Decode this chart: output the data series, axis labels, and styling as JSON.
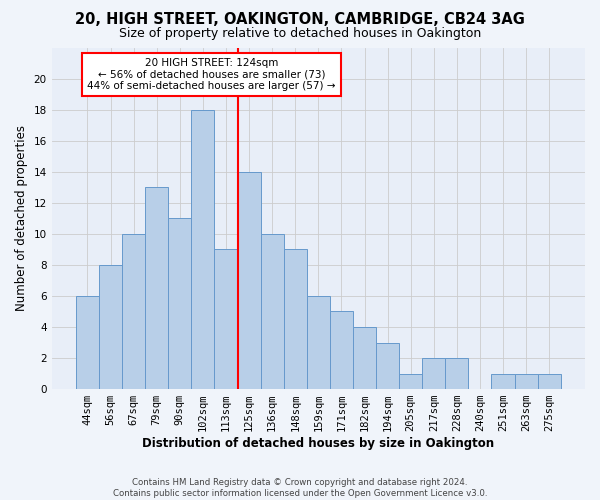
{
  "title": "20, HIGH STREET, OAKINGTON, CAMBRIDGE, CB24 3AG",
  "subtitle": "Size of property relative to detached houses in Oakington",
  "xlabel": "Distribution of detached houses by size in Oakington",
  "ylabel": "Number of detached properties",
  "categories": [
    "44sqm",
    "56sqm",
    "67sqm",
    "79sqm",
    "90sqm",
    "102sqm",
    "113sqm",
    "125sqm",
    "136sqm",
    "148sqm",
    "159sqm",
    "171sqm",
    "182sqm",
    "194sqm",
    "205sqm",
    "217sqm",
    "228sqm",
    "240sqm",
    "251sqm",
    "263sqm",
    "275sqm"
  ],
  "values": [
    6,
    8,
    10,
    13,
    11,
    18,
    9,
    14,
    10,
    9,
    6,
    5,
    4,
    3,
    1,
    2,
    2,
    0,
    1,
    1,
    1
  ],
  "bar_color": "#b8cfe8",
  "bar_edge_color": "#6699cc",
  "grid_color": "#cccccc",
  "vline_color": "red",
  "annotation_text": "20 HIGH STREET: 124sqm\n← 56% of detached houses are smaller (73)\n44% of semi-detached houses are larger (57) →",
  "annotation_box_color": "white",
  "annotation_box_edge": "red",
  "ylim": [
    0,
    22
  ],
  "yticks": [
    0,
    2,
    4,
    6,
    8,
    10,
    12,
    14,
    16,
    18,
    20
  ],
  "background_color": "#e8eef8",
  "fig_bg_color": "#f0f4fa",
  "footer": "Contains HM Land Registry data © Crown copyright and database right 2024.\nContains public sector information licensed under the Open Government Licence v3.0."
}
